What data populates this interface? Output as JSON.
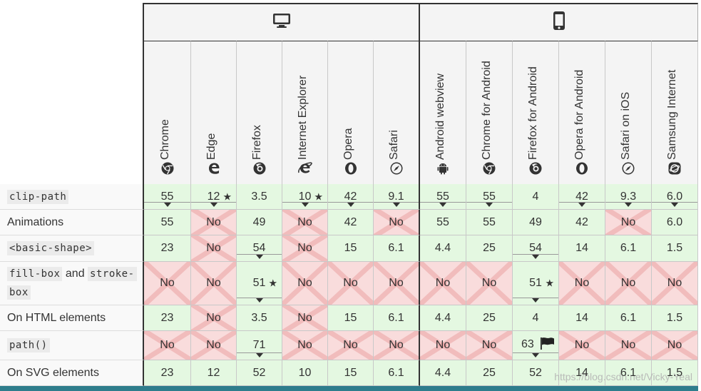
{
  "header": {
    "groups": [
      {
        "icon": "desktop-icon"
      },
      {
        "icon": "mobile-icon"
      }
    ],
    "browsers": [
      {
        "name": "Chrome",
        "icon": "chrome-icon"
      },
      {
        "name": "Edge",
        "icon": "edge-icon"
      },
      {
        "name": "Firefox",
        "icon": "firefox-icon"
      },
      {
        "name": "Internet Explorer",
        "icon": "ie-icon"
      },
      {
        "name": "Opera",
        "icon": "opera-icon"
      },
      {
        "name": "Safari",
        "icon": "safari-icon"
      },
      {
        "name": "Android webview",
        "icon": "android-icon"
      },
      {
        "name": "Chrome for Android",
        "icon": "chrome-icon"
      },
      {
        "name": "Firefox for Android",
        "icon": "firefox-icon"
      },
      {
        "name": "Opera for Android",
        "icon": "opera-icon"
      },
      {
        "name": "Safari on iOS",
        "icon": "safari-icon"
      },
      {
        "name": "Samsung Internet",
        "icon": "samsung-icon"
      }
    ]
  },
  "rows": [
    {
      "feature": "",
      "code": "clip-path",
      "code2": "",
      "cells": [
        {
          "v": "55",
          "s": "yes",
          "n": true
        },
        {
          "v": "12",
          "s": "yes",
          "n": true,
          "star": true
        },
        {
          "v": "3.5",
          "s": "yes"
        },
        {
          "v": "10",
          "s": "yes",
          "n": true,
          "star": true
        },
        {
          "v": "42",
          "s": "yes",
          "n": true
        },
        {
          "v": "9.1",
          "s": "yes",
          "n": true
        },
        {
          "v": "55",
          "s": "yes",
          "n": true
        },
        {
          "v": "55",
          "s": "yes",
          "n": true
        },
        {
          "v": "4",
          "s": "yes"
        },
        {
          "v": "42",
          "s": "yes",
          "n": true
        },
        {
          "v": "9.3",
          "s": "yes",
          "n": true
        },
        {
          "v": "6.0",
          "s": "yes",
          "n": true
        }
      ]
    },
    {
      "feature": "Animations",
      "cells": [
        {
          "v": "55",
          "s": "yes"
        },
        {
          "v": "No",
          "s": "no"
        },
        {
          "v": "49",
          "s": "yes"
        },
        {
          "v": "No",
          "s": "no"
        },
        {
          "v": "42",
          "s": "yes"
        },
        {
          "v": "No",
          "s": "no"
        },
        {
          "v": "55",
          "s": "yes"
        },
        {
          "v": "55",
          "s": "yes"
        },
        {
          "v": "49",
          "s": "yes"
        },
        {
          "v": "42",
          "s": "yes"
        },
        {
          "v": "No",
          "s": "no"
        },
        {
          "v": "6.0",
          "s": "yes"
        }
      ]
    },
    {
      "feature": "",
      "code": "<basic-shape>",
      "cells": [
        {
          "v": "23",
          "s": "yes"
        },
        {
          "v": "No",
          "s": "no"
        },
        {
          "v": "54",
          "s": "yes",
          "n": true
        },
        {
          "v": "No",
          "s": "no"
        },
        {
          "v": "15",
          "s": "yes"
        },
        {
          "v": "6.1",
          "s": "yes"
        },
        {
          "v": "4.4",
          "s": "yes"
        },
        {
          "v": "25",
          "s": "yes"
        },
        {
          "v": "54",
          "s": "yes",
          "n": true
        },
        {
          "v": "14",
          "s": "yes"
        },
        {
          "v": "6.1",
          "s": "yes"
        },
        {
          "v": "1.5",
          "s": "yes"
        }
      ]
    },
    {
      "feature": "and",
      "code": "fill-box",
      "code2": "stroke-",
      "code3": "box",
      "cells": [
        {
          "v": "No",
          "s": "no"
        },
        {
          "v": "No",
          "s": "no"
        },
        {
          "v": "51",
          "s": "yes",
          "n": true,
          "star": true
        },
        {
          "v": "No",
          "s": "no"
        },
        {
          "v": "No",
          "s": "no"
        },
        {
          "v": "No",
          "s": "no"
        },
        {
          "v": "No",
          "s": "no"
        },
        {
          "v": "No",
          "s": "no"
        },
        {
          "v": "51",
          "s": "yes",
          "n": true,
          "star": true
        },
        {
          "v": "No",
          "s": "no"
        },
        {
          "v": "No",
          "s": "no"
        },
        {
          "v": "No",
          "s": "no"
        }
      ]
    },
    {
      "feature": "On HTML elements",
      "cells": [
        {
          "v": "23",
          "s": "yes"
        },
        {
          "v": "No",
          "s": "no"
        },
        {
          "v": "3.5",
          "s": "yes"
        },
        {
          "v": "No",
          "s": "no"
        },
        {
          "v": "15",
          "s": "yes"
        },
        {
          "v": "6.1",
          "s": "yes"
        },
        {
          "v": "4.4",
          "s": "yes"
        },
        {
          "v": "25",
          "s": "yes"
        },
        {
          "v": "4",
          "s": "yes"
        },
        {
          "v": "14",
          "s": "yes"
        },
        {
          "v": "6.1",
          "s": "yes"
        },
        {
          "v": "1.5",
          "s": "yes"
        }
      ]
    },
    {
      "feature": "",
      "code": "path()",
      "cells": [
        {
          "v": "No",
          "s": "no"
        },
        {
          "v": "No",
          "s": "no"
        },
        {
          "v": "71",
          "s": "yes",
          "n": true
        },
        {
          "v": "No",
          "s": "no"
        },
        {
          "v": "No",
          "s": "no"
        },
        {
          "v": "No",
          "s": "no"
        },
        {
          "v": "No",
          "s": "no"
        },
        {
          "v": "No",
          "s": "no"
        },
        {
          "v": "63",
          "s": "yes",
          "n": true,
          "flag": true
        },
        {
          "v": "No",
          "s": "no"
        },
        {
          "v": "No",
          "s": "no"
        },
        {
          "v": "No",
          "s": "no"
        }
      ]
    },
    {
      "feature": "On SVG elements",
      "cells": [
        {
          "v": "23",
          "s": "yes"
        },
        {
          "v": "12",
          "s": "yes"
        },
        {
          "v": "52",
          "s": "yes"
        },
        {
          "v": "10",
          "s": "yes"
        },
        {
          "v": "15",
          "s": "yes"
        },
        {
          "v": "6.1",
          "s": "yes"
        },
        {
          "v": "4.4",
          "s": "yes"
        },
        {
          "v": "25",
          "s": "yes"
        },
        {
          "v": "52",
          "s": "yes"
        },
        {
          "v": "14",
          "s": "yes"
        },
        {
          "v": "6.1",
          "s": "yes"
        },
        {
          "v": "1.5",
          "s": "yes"
        }
      ]
    }
  ],
  "watermark": "https://blog.csdn.net/Vicky-Yeal",
  "colors": {
    "supported": "#e4f8e1",
    "unsupported": "#f9dcdc",
    "bottom_bar": "#2e7d8c"
  }
}
